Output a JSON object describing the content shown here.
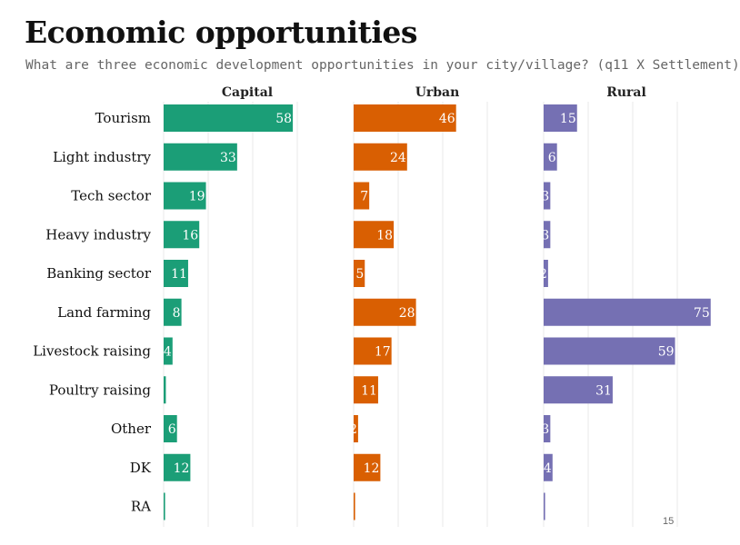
{
  "title": "Economic opportunities",
  "subtitle": "What are three economic development opportunities in your city/village? (q11 X Settlement)",
  "page_number": "15",
  "colors": {
    "Capital": "#1b9e77",
    "Urban": "#d95f02",
    "Rural": "#7570b3",
    "grid": "#e8e8e8"
  },
  "chart_data": {
    "type": "bar",
    "orientation": "horizontal",
    "facets": [
      "Capital",
      "Urban",
      "Rural"
    ],
    "categories": [
      "Tourism",
      "Light industry",
      "Tech sector",
      "Heavy industry",
      "Banking sector",
      "Land farming",
      "Livestock raising",
      "Poultry raising",
      "Other",
      "DK",
      "RA"
    ],
    "series": [
      {
        "name": "Capital",
        "values": [
          58,
          33,
          19,
          16,
          11,
          8,
          4,
          1,
          6,
          12,
          0
        ]
      },
      {
        "name": "Urban",
        "values": [
          46,
          24,
          7,
          18,
          5,
          28,
          17,
          11,
          2,
          12,
          0
        ]
      },
      {
        "name": "Rural",
        "values": [
          15,
          6,
          3,
          3,
          2,
          75,
          59,
          31,
          3,
          4,
          0
        ]
      }
    ],
    "xlim": [
      0,
      75
    ],
    "grid": true,
    "legend": "none"
  }
}
